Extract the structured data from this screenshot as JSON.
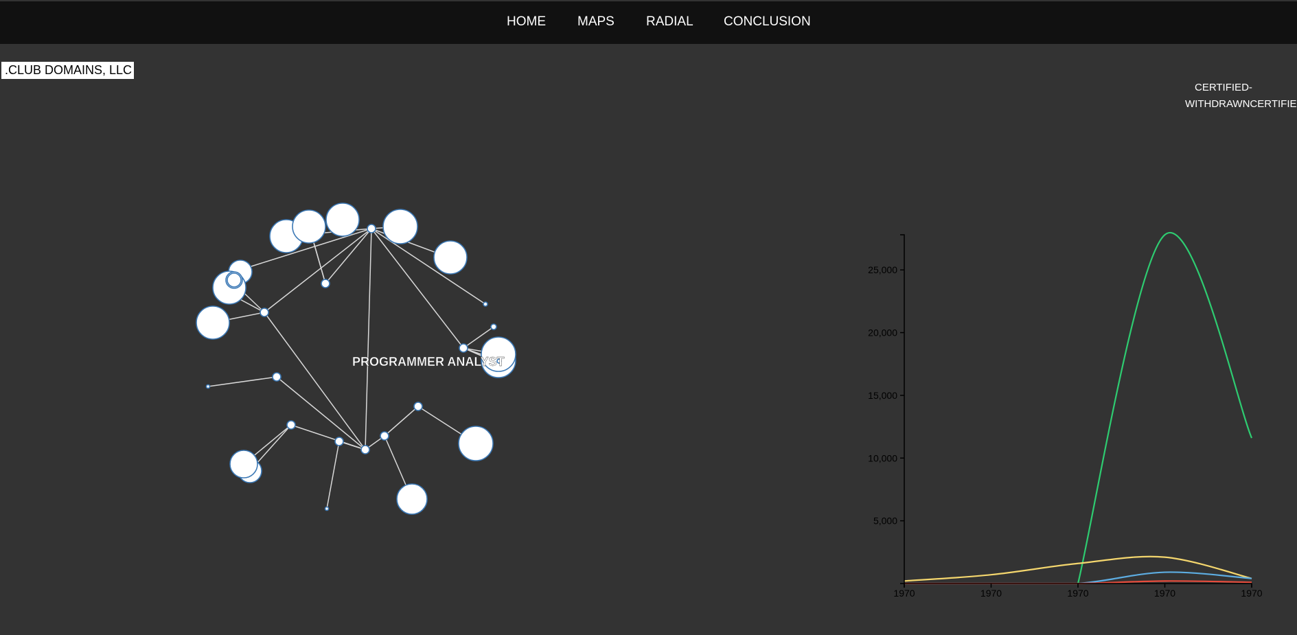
{
  "nav": {
    "items": [
      {
        "label": "HOME"
      },
      {
        "label": "MAPS"
      },
      {
        "label": "RADIAL"
      },
      {
        "label": "CONCLUSION"
      }
    ]
  },
  "tooltip": {
    "text": ".CLUB DOMAINS, LLC"
  },
  "network": {
    "center_label": "PROGRAMMER ANALYST"
  },
  "legend": {
    "line1": "CERTIFIED-",
    "line2": "WITHDRAWNCERTIFIE"
  },
  "colors": {
    "certified": "#2ecc71",
    "certified_withdrawn": "#f5d76e",
    "withdrawn": "#5dade2",
    "denied": "#e74c3c"
  },
  "chart_data": {
    "type": "line",
    "x": [
      "1970",
      "1970",
      "1970",
      "1970",
      "1970"
    ],
    "y_ticks": [
      "5,000",
      "10,000",
      "15,000",
      "20,000",
      "25,000"
    ],
    "ylim": [
      0,
      27800
    ],
    "series": [
      {
        "values": [
          null,
          null,
          0,
          27800,
          11600
        ],
        "color": "#2ecc71"
      },
      {
        "values": [
          200,
          700,
          1600,
          2100,
          400
        ],
        "color": "#f5d76e"
      },
      {
        "values": [
          0,
          0,
          0,
          900,
          400
        ],
        "color": "#5dade2"
      },
      {
        "values": [
          0,
          0,
          0,
          200,
          100
        ],
        "color": "#e74c3c"
      }
    ]
  }
}
